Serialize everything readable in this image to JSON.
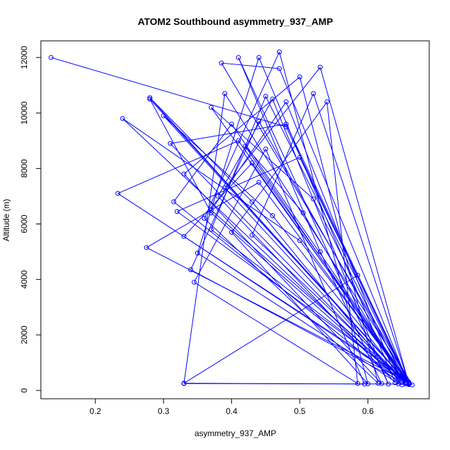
{
  "chart_data": {
    "type": "line",
    "title": "ATOM2 Southbound asymmetry_937_AMP",
    "xlabel": "asymmetry_937_AMP",
    "ylabel": "Altitude (m)",
    "xlim": [
      0.12,
      0.69
    ],
    "ylim": [
      -300,
      12600
    ],
    "x_ticks": [
      0.2,
      0.3,
      0.4,
      0.5,
      0.6
    ],
    "y_ticks": [
      0,
      2000,
      4000,
      6000,
      8000,
      10000,
      12000
    ],
    "x_tick_labels": [
      "0.2",
      "0.3",
      "0.4",
      "0.5",
      "0.6"
    ],
    "y_tick_labels": [
      "0",
      "2000",
      "4000",
      "6000",
      "8000",
      "10000",
      "12000"
    ],
    "grid": false,
    "color": "#0000ff",
    "marker": "open-circle",
    "series": [
      {
        "x": [
          0.135,
          0.48,
          0.66,
          0.28,
          0.37,
          0.65,
          0.24,
          0.5,
          0.66,
          0.233,
          0.41,
          0.66,
          0.275,
          0.44,
          0.66,
          0.33,
          0.39,
          0.665,
          0.385,
          0.47,
          0.66,
          0.3,
          0.46,
          0.655,
          0.42,
          0.505,
          0.655,
          0.34,
          0.44,
          0.66,
          0.28,
          0.43,
          0.65,
          0.315,
          0.4,
          0.66,
          0.52,
          0.43,
          0.66,
          0.45,
          0.37,
          0.66,
          0.53,
          0.39,
          0.655,
          0.31,
          0.48,
          0.66,
          0.32,
          0.5,
          0.66,
          0.37,
          0.52,
          0.655,
          0.33,
          0.43,
          0.66,
          0.37,
          0.48,
          0.645,
          0.35,
          0.44,
          0.64,
          0.38,
          0.46,
          0.63,
          0.41,
          0.53,
          0.62,
          0.33,
          0.5,
          0.615,
          0.36,
          0.47,
          0.6,
          0.4,
          0.54,
          0.585,
          0.345,
          0.45,
          0.595,
          0.33,
          0.585
        ],
        "y": [
          12000,
          9500,
          250,
          10500,
          6400,
          300,
          9800,
          5400,
          260,
          7100,
          9000,
          280,
          5150,
          7500,
          230,
          250,
          10700,
          200,
          11800,
          11600,
          230,
          9900,
          6300,
          280,
          8800,
          6400,
          240,
          4350,
          9700,
          220,
          10550,
          6800,
          200,
          6800,
          9600,
          270,
          10700,
          5600,
          230,
          10600,
          5800,
          250,
          11650,
          7300,
          240,
          8900,
          9600,
          300,
          6450,
          8400,
          260,
          10200,
          6900,
          280,
          5550,
          8200,
          210,
          6500,
          10400,
          240,
          4950,
          12000,
          280,
          7000,
          10500,
          230,
          12000,
          5000,
          250,
          7800,
          11300,
          260,
          6200,
          12200,
          240,
          5700,
          10400,
          250,
          3900,
          8700,
          230,
          260,
          4150
        ]
      }
    ]
  }
}
